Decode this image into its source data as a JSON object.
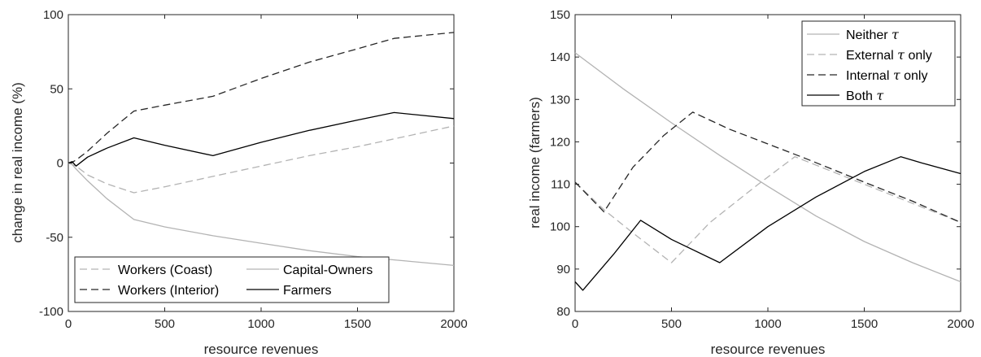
{
  "chart_data": [
    {
      "type": "line",
      "title": "",
      "xlabel": "resource revenues",
      "ylabel": "change in real income (%)",
      "xlim": [
        0,
        2000
      ],
      "ylim": [
        -100,
        100
      ],
      "xticks": [
        0,
        500,
        1000,
        1500,
        2000
      ],
      "yticks": [
        -100,
        -50,
        0,
        50,
        100
      ],
      "xtick_labels": [
        "0",
        "500",
        "1000",
        "1500",
        "2000"
      ],
      "ytick_labels": [
        "-100",
        "-50",
        "0",
        "50",
        "100"
      ],
      "grid": false,
      "legend": {
        "position": "bottom-center",
        "columns": 2
      },
      "series": [
        {
          "name": "Workers (Coast)",
          "color": "#b3b3b3",
          "dash": "dashed",
          "x": [
            0,
            20,
            40,
            100,
            200,
            340,
            500,
            750,
            1000,
            1250,
            1500,
            1750,
            2000
          ],
          "y": [
            0,
            -1,
            -2,
            -8,
            -14,
            -20,
            -16,
            -9,
            -2,
            5,
            11,
            18,
            25
          ]
        },
        {
          "name": "Workers (Interior)",
          "color": "#262626",
          "dash": "dashed",
          "x": [
            0,
            20,
            40,
            100,
            200,
            340,
            500,
            750,
            1000,
            1250,
            1500,
            1690,
            2000
          ],
          "y": [
            0,
            0.5,
            2,
            8,
            20,
            35,
            39,
            45,
            57,
            68,
            77,
            84,
            88
          ]
        },
        {
          "name": "Capital-Owners",
          "color": "#b3b3b3",
          "dash": "solid",
          "x": [
            0,
            20,
            40,
            100,
            200,
            340,
            500,
            750,
            1000,
            1250,
            1500,
            1750,
            2000
          ],
          "y": [
            0,
            -1,
            -4,
            -12,
            -24,
            -38,
            -43,
            -49,
            -54,
            -59,
            -63,
            -66,
            -69
          ]
        },
        {
          "name": "Farmers",
          "color": "#000000",
          "dash": "solid",
          "x": [
            0,
            20,
            40,
            100,
            200,
            340,
            500,
            750,
            1000,
            1250,
            1500,
            1690,
            2000
          ],
          "y": [
            0,
            1,
            -2,
            4,
            10,
            17,
            12,
            5,
            14,
            22,
            29,
            34,
            30
          ]
        }
      ]
    },
    {
      "type": "line",
      "title": "",
      "xlabel": "resource revenues",
      "ylabel": "real income (farmers)",
      "xlim": [
        0,
        2000
      ],
      "ylim": [
        80,
        150
      ],
      "xticks": [
        0,
        500,
        1000,
        1500,
        2000
      ],
      "yticks": [
        80,
        90,
        100,
        110,
        120,
        130,
        140,
        150
      ],
      "xtick_labels": [
        "0",
        "500",
        "1000",
        "1500",
        "2000"
      ],
      "ytick_labels": [
        "80",
        "90",
        "100",
        "110",
        "120",
        "130",
        "140",
        "150"
      ],
      "grid": false,
      "legend": {
        "position": "top-right",
        "columns": 1
      },
      "series": [
        {
          "name": "Neither τ",
          "color": "#b3b3b3",
          "dash": "solid",
          "x": [
            0,
            250,
            500,
            750,
            1000,
            1250,
            1500,
            1750,
            2000
          ],
          "y": [
            141,
            132.5,
            124.5,
            116.8,
            109.5,
            102.5,
            96.5,
            91.5,
            87
          ]
        },
        {
          "name": "External τ only",
          "color": "#b3b3b3",
          "dash": "dashed",
          "x": [
            0,
            150,
            300,
            500,
            700,
            950,
            1140,
            1500,
            2000
          ],
          "y": [
            110.5,
            104,
            98.5,
            91.5,
            101,
            110,
            116.5,
            110,
            101
          ]
        },
        {
          "name": "Internal τ only",
          "color": "#262626",
          "dash": "dashed",
          "x": [
            0,
            150,
            300,
            460,
            610,
            800,
            1000,
            1200,
            1500,
            1750,
            2000
          ],
          "y": [
            110.5,
            103.5,
            114,
            121.5,
            127,
            123,
            119.5,
            116,
            110.5,
            106,
            101
          ]
        },
        {
          "name": "Both τ",
          "color": "#000000",
          "dash": "solid",
          "x": [
            0,
            40,
            200,
            340,
            500,
            750,
            1000,
            1250,
            1500,
            1690,
            1800,
            2000
          ],
          "y": [
            87,
            85,
            93.5,
            101.5,
            97,
            91.5,
            100,
            107,
            113,
            116.5,
            115,
            112.5
          ]
        }
      ]
    }
  ]
}
